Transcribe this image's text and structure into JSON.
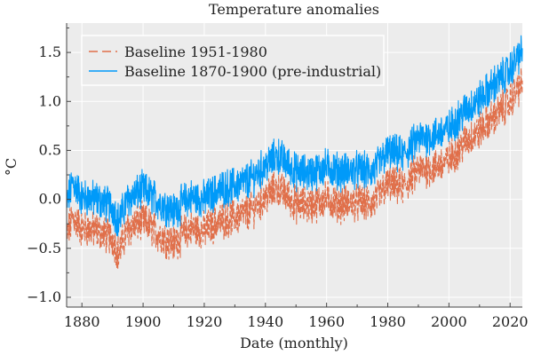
{
  "chart_data": {
    "type": "line",
    "title": "Temperature anomalies",
    "xlabel": "Date (monthly)",
    "ylabel": "°C",
    "xlim": [
      1875,
      2024
    ],
    "ylim": [
      -1.1,
      1.8
    ],
    "x_ticks": [
      1880,
      1900,
      1920,
      1940,
      1960,
      1980,
      2000,
      2020
    ],
    "y_ticks": [
      -1.0,
      -0.5,
      0.0,
      0.5,
      1.0,
      1.5
    ],
    "y_tick_labels": [
      "−1.0",
      "−0.5",
      "0.0",
      "0.5",
      "1.0",
      "1.5"
    ],
    "grid": true,
    "legend_position": "top-left",
    "series": [
      {
        "name": "Baseline 1951-1980",
        "color": "#e06f4a",
        "dash": "dashed",
        "x": [
          1875,
          1877,
          1880,
          1885,
          1890,
          1892,
          1895,
          1900,
          1905,
          1910,
          1915,
          1920,
          1925,
          1930,
          1935,
          1940,
          1944,
          1950,
          1955,
          1960,
          1965,
          1970,
          1975,
          1980,
          1985,
          1990,
          1995,
          2000,
          2005,
          2010,
          2015,
          2020,
          2023
        ],
        "y": [
          -0.38,
          -0.18,
          -0.3,
          -0.32,
          -0.4,
          -0.55,
          -0.3,
          -0.22,
          -0.35,
          -0.45,
          -0.3,
          -0.32,
          -0.22,
          -0.18,
          -0.12,
          0.02,
          0.12,
          -0.05,
          -0.06,
          0.0,
          -0.05,
          -0.03,
          -0.05,
          0.15,
          0.12,
          0.3,
          0.32,
          0.4,
          0.58,
          0.7,
          0.85,
          1.0,
          1.15
        ]
      },
      {
        "name": "Baseline 1870-1900 (pre-industrial)",
        "color": "#009af9",
        "dash": "solid",
        "x": [
          1875,
          1877,
          1880,
          1885,
          1890,
          1892,
          1895,
          1900,
          1905,
          1910,
          1915,
          1920,
          1925,
          1930,
          1935,
          1940,
          1944,
          1950,
          1955,
          1960,
          1965,
          1970,
          1975,
          1980,
          1985,
          1990,
          1995,
          2000,
          2005,
          2010,
          2015,
          2020,
          2023
        ],
        "y": [
          -0.05,
          0.18,
          0.02,
          0.0,
          -0.08,
          -0.22,
          0.0,
          0.1,
          -0.02,
          -0.12,
          0.02,
          0.0,
          0.1,
          0.14,
          0.2,
          0.34,
          0.45,
          0.28,
          0.27,
          0.33,
          0.28,
          0.3,
          0.28,
          0.48,
          0.45,
          0.62,
          0.65,
          0.72,
          0.9,
          1.02,
          1.18,
          1.32,
          1.48
        ]
      }
    ]
  }
}
